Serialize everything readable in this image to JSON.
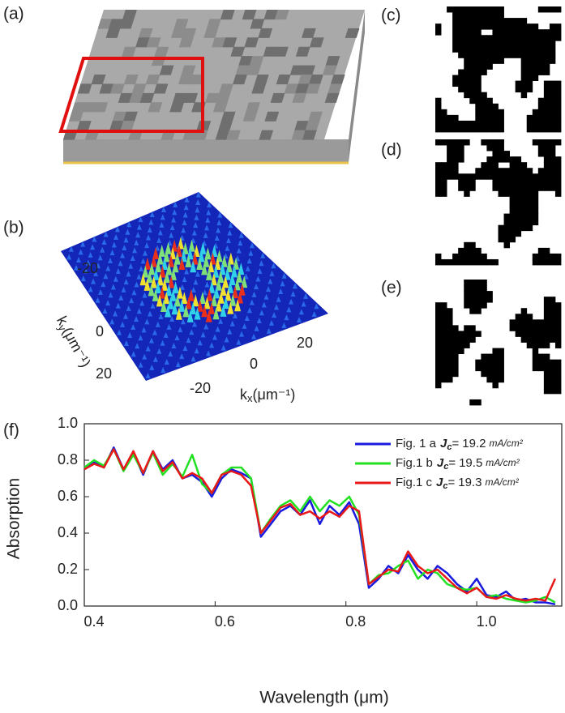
{
  "panels": {
    "a": "(a)",
    "b": "(b)",
    "c": "(c)",
    "d": "(d)",
    "e": "(e)",
    "f": "(f)"
  },
  "chart_data": [
    {
      "type": "line",
      "xlabel": "Wavelength (μm)",
      "ylabel": "Absorption",
      "xlim": [
        0.4,
        1.13
      ],
      "ylim": [
        0,
        1
      ],
      "xticks": [
        0.4,
        0.6,
        0.8,
        {
          "value": 1,
          "label": "1.0"
        }
      ],
      "yticks": [
        {
          "value": 0,
          "label": "0.0"
        },
        0.2,
        0.4,
        0.6,
        0.8,
        {
          "value": 1,
          "label": "1.0"
        }
      ],
      "legend": "upper right",
      "legend_symbol": "J",
      "legend_sub": "c",
      "legend_eq": "=",
      "legend_unit": "mA/cm²",
      "x": [
        0.4,
        0.415,
        0.43,
        0.445,
        0.46,
        0.475,
        0.49,
        0.505,
        0.52,
        0.535,
        0.55,
        0.565,
        0.58,
        0.595,
        0.61,
        0.625,
        0.64,
        0.655,
        0.67,
        0.685,
        0.7,
        0.715,
        0.73,
        0.745,
        0.76,
        0.775,
        0.79,
        0.805,
        0.82,
        0.835,
        0.85,
        0.865,
        0.88,
        0.895,
        0.91,
        0.925,
        0.94,
        0.955,
        0.97,
        0.985,
        1.0,
        1.015,
        1.03,
        1.045,
        1.06,
        1.075,
        1.09,
        1.105,
        1.12
      ],
      "series": [
        {
          "name": "Fig. 1 a",
          "jc": 19.2,
          "color": "#1a1adf",
          "values": [
            0.75,
            0.79,
            0.76,
            0.87,
            0.75,
            0.84,
            0.72,
            0.85,
            0.75,
            0.8,
            0.7,
            0.72,
            0.68,
            0.6,
            0.7,
            0.75,
            0.73,
            0.7,
            0.38,
            0.45,
            0.52,
            0.55,
            0.5,
            0.58,
            0.45,
            0.55,
            0.5,
            0.57,
            0.45,
            0.1,
            0.15,
            0.22,
            0.18,
            0.28,
            0.2,
            0.15,
            0.22,
            0.18,
            0.12,
            0.08,
            0.15,
            0.06,
            0.05,
            0.08,
            0.03,
            0.04,
            0.02,
            0.02,
            0.01
          ]
        },
        {
          "name": "Fig.1 b",
          "jc": 19.5,
          "color": "#22e022",
          "values": [
            0.76,
            0.8,
            0.77,
            0.86,
            0.74,
            0.83,
            0.73,
            0.84,
            0.72,
            0.78,
            0.71,
            0.83,
            0.67,
            0.62,
            0.72,
            0.76,
            0.76,
            0.7,
            0.4,
            0.48,
            0.55,
            0.58,
            0.52,
            0.6,
            0.52,
            0.58,
            0.55,
            0.6,
            0.5,
            0.12,
            0.17,
            0.18,
            0.22,
            0.25,
            0.15,
            0.2,
            0.18,
            0.12,
            0.1,
            0.09,
            0.1,
            0.05,
            0.06,
            0.04,
            0.03,
            0.02,
            0.03,
            0.05,
            0.02
          ]
        },
        {
          "name": "Fig.1 c",
          "jc": 19.3,
          "color": "#e81818",
          "values": [
            0.75,
            0.78,
            0.76,
            0.86,
            0.75,
            0.85,
            0.73,
            0.85,
            0.74,
            0.79,
            0.7,
            0.73,
            0.7,
            0.62,
            0.72,
            0.74,
            0.72,
            0.66,
            0.4,
            0.47,
            0.54,
            0.56,
            0.5,
            0.52,
            0.48,
            0.52,
            0.49,
            0.55,
            0.52,
            0.12,
            0.16,
            0.2,
            0.19,
            0.3,
            0.22,
            0.18,
            0.2,
            0.15,
            0.1,
            0.07,
            0.1,
            0.05,
            0.04,
            0.06,
            0.04,
            0.03,
            0.04,
            0.03,
            0.15
          ]
        }
      ]
    },
    {
      "type": "surface",
      "xlabel_base": "k",
      "xlabel_sub": "x",
      "ylabel_base": "k",
      "ylabel_sub": "y",
      "label_unit": "(μm⁻¹)",
      "xticks": [
        -20,
        0,
        20
      ],
      "yticks": [
        -20,
        0,
        20
      ]
    }
  ]
}
